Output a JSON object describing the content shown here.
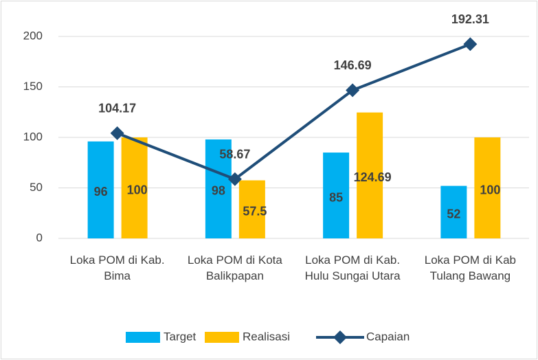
{
  "chart_data": {
    "type": "bar_line",
    "categories": [
      "Loka POM di Kab. Bima",
      "Loka POM di Kota Balikpapan",
      "Loka POM di Kab. Hulu Sungai Utara",
      "Loka POM di Kab Tulang Bawang"
    ],
    "series": [
      {
        "name": "Target",
        "type": "bar",
        "color": "#00b0f0",
        "values": [
          96,
          98,
          85,
          52
        ]
      },
      {
        "name": "Realisasi",
        "type": "bar",
        "color": "#ffc000",
        "values": [
          100,
          57.5,
          124.69,
          100
        ]
      },
      {
        "name": "Capaian",
        "type": "line",
        "color": "#1f4e79",
        "values": [
          104.17,
          58.67,
          146.69,
          192.31
        ]
      }
    ],
    "ylim": [
      0,
      200
    ],
    "yticks": [
      0,
      50,
      100,
      150,
      200
    ],
    "grid": true,
    "legend": "bottom"
  }
}
